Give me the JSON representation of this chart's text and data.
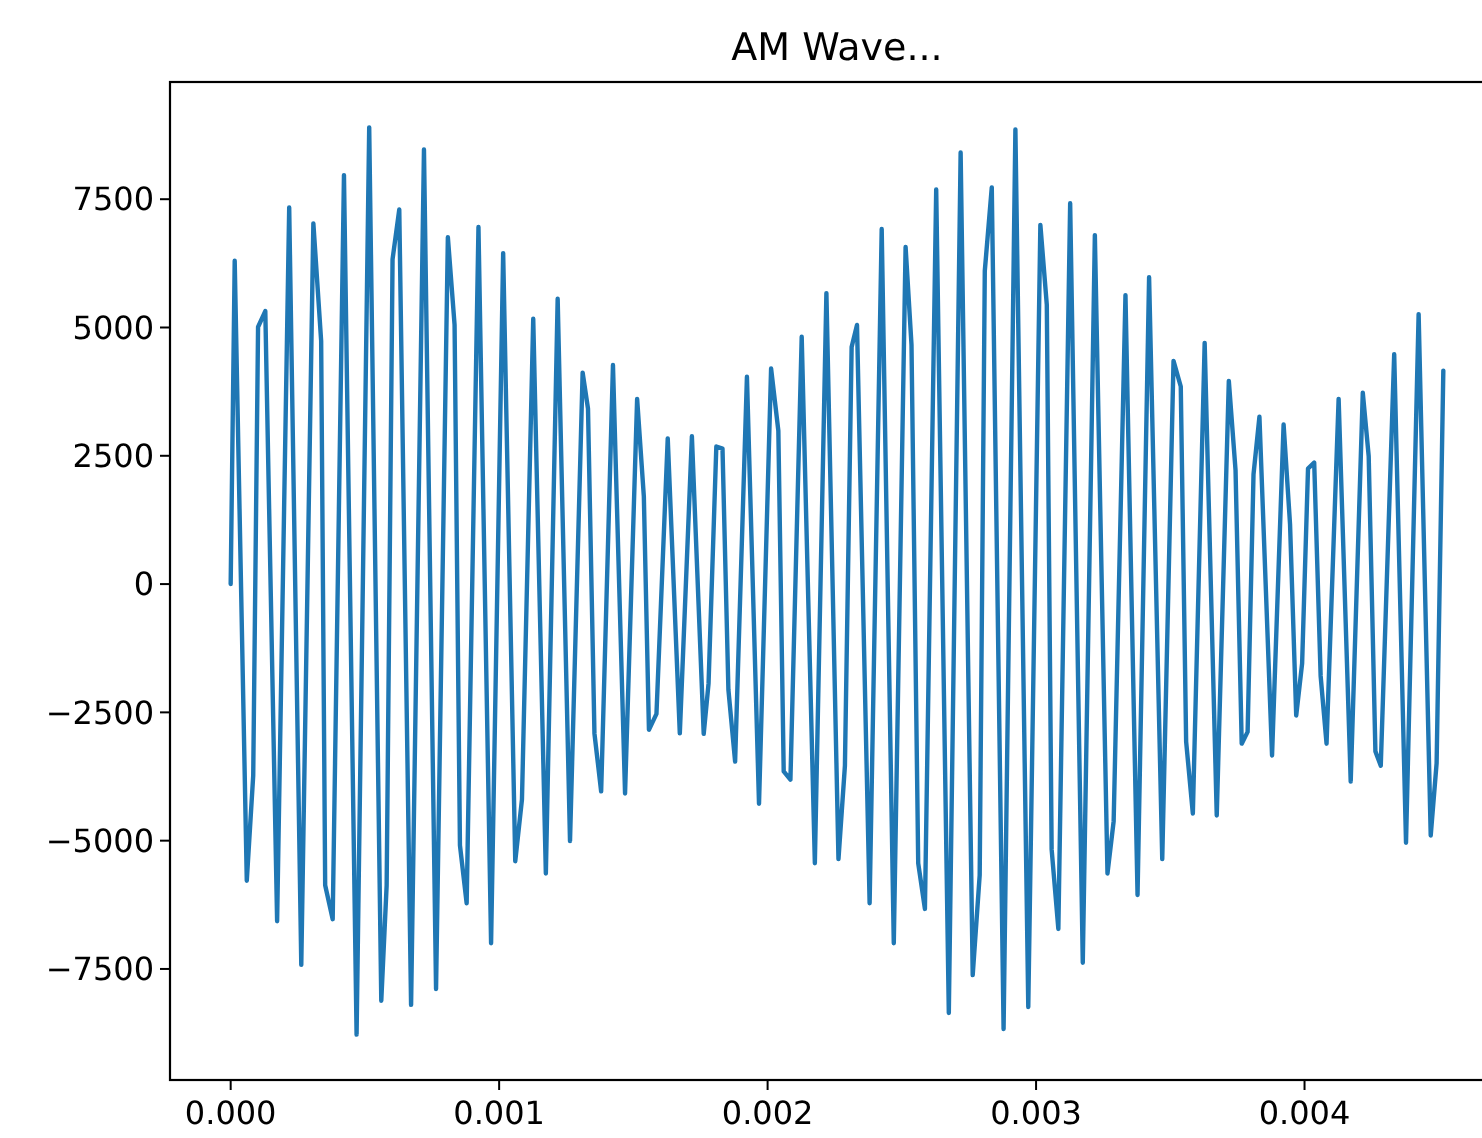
{
  "chart_data": {
    "type": "line",
    "title": "AM Wave...",
    "x": [
      0,
      1.5e-05,
      6e-05,
      8.4e-05,
      0.000102,
      0.000129,
      0.000173,
      0.000218,
      0.000263,
      0.000308,
      0.000337,
      0.000352,
      0.00038,
      0.000422,
      0.000469,
      0.000516,
      0.000561,
      0.000581,
      0.000603,
      0.000628,
      0.000672,
      0.00072,
      0.000765,
      0.000809,
      0.000834,
      0.000854,
      0.000879,
      0.000923,
      0.00097,
      0.001015,
      0.00106,
      0.001085,
      0.001127,
      0.001174,
      0.001218,
      0.001264,
      0.001311,
      0.001331,
      0.001355,
      0.00138,
      0.001424,
      0.001469,
      0.001514,
      0.001539,
      0.001558,
      0.001586,
      0.001628,
      0.001673,
      0.001718,
      0.001762,
      0.00178,
      0.001809,
      0.001832,
      0.001854,
      0.001879,
      0.001923,
      0.001968,
      0.002013,
      0.00204,
      0.00206,
      0.002085,
      0.002127,
      0.002176,
      0.002219,
      0.002264,
      0.002288,
      0.002313,
      0.002333,
      0.00238,
      0.002425,
      0.00247,
      0.002514,
      0.002536,
      0.002561,
      0.002586,
      0.002628,
      0.002675,
      0.002719,
      0.002764,
      0.00279,
      0.002809,
      0.002835,
      0.002879,
      0.002923,
      0.002971,
      0.003016,
      0.00304,
      0.003058,
      0.003083,
      0.003127,
      0.003174,
      0.003219,
      0.003266,
      0.003289,
      0.003333,
      0.003378,
      0.003421,
      0.00347,
      0.003512,
      0.003539,
      0.003559,
      0.003584,
      0.003628,
      0.003673,
      0.003718,
      0.003743,
      0.003766,
      0.003788,
      0.00381,
      0.003832,
      0.003879,
      0.003922,
      0.003946,
      0.003969,
      0.003991,
      0.004013,
      0.004036,
      0.00406,
      0.004082,
      0.004127,
      0.004172,
      0.004217,
      0.004239,
      0.004264,
      0.004284,
      0.004334,
      0.004378,
      0.004425,
      0.00447,
      0.004492,
      0.004517
    ],
    "series": [
      {
        "color": "#1f77b4",
        "values": [
          0,
          6300,
          -5780,
          -3730,
          5010,
          5320,
          -6570,
          7340,
          -7420,
          7030,
          4740,
          -5870,
          -6530,
          7970,
          -8780,
          8900,
          -8120,
          -5870,
          6330,
          7300,
          -8200,
          8470,
          -7890,
          6760,
          5050,
          -5090,
          -6220,
          6960,
          -7000,
          6450,
          -5400,
          -4200,
          5170,
          -5640,
          5560,
          -5010,
          4120,
          3420,
          -2910,
          -4040,
          4270,
          -4080,
          3610,
          1710,
          -2840,
          -2530,
          2840,
          -2910,
          2880,
          -2920,
          -1940,
          2680,
          2640,
          -2060,
          -3460,
          4040,
          -4280,
          4200,
          2990,
          -3650,
          -3810,
          4820,
          -5440,
          5670,
          -5360,
          -3540,
          4620,
          5050,
          -6220,
          6920,
          -7000,
          6570,
          4660,
          -5440,
          -6330,
          7690,
          -8360,
          8410,
          -7620,
          -5670,
          6100,
          7730,
          -8670,
          8860,
          -8240,
          7000,
          5440,
          -5170,
          -6720,
          7420,
          -7380,
          6800,
          -5640,
          -4620,
          5630,
          -6060,
          5980,
          -5360,
          4350,
          3850,
          -3070,
          -4470,
          4700,
          -4510,
          3960,
          2220,
          -3110,
          -2880,
          2140,
          3260,
          -3340,
          3110,
          1170,
          -2560,
          -1550,
          2250,
          2370,
          -1790,
          -3110,
          3610,
          -3850,
          3730,
          2490,
          -3260,
          -3540,
          4480,
          -5040,
          5260,
          -4900,
          -3490,
          4160
        ]
      }
    ],
    "xlim": [
      -0.000226,
      0.004743
    ],
    "xticks": [
      {
        "value": 0,
        "label": "0.000"
      },
      {
        "value": 0.001,
        "label": "0.001"
      },
      {
        "value": 0.002,
        "label": "0.002"
      },
      {
        "value": 0.003,
        "label": "0.003"
      },
      {
        "value": 0.004,
        "label": "0.004"
      }
    ],
    "ylim": [
      -9664,
      9784
    ],
    "yticks": [
      {
        "value": -7500,
        "label": "−7500"
      },
      {
        "value": -5000,
        "label": "−5000"
      },
      {
        "value": -2500,
        "label": "−2500"
      },
      0,
      2500,
      5000,
      7500
    ],
    "marker": "none",
    "line_style": "solid"
  }
}
